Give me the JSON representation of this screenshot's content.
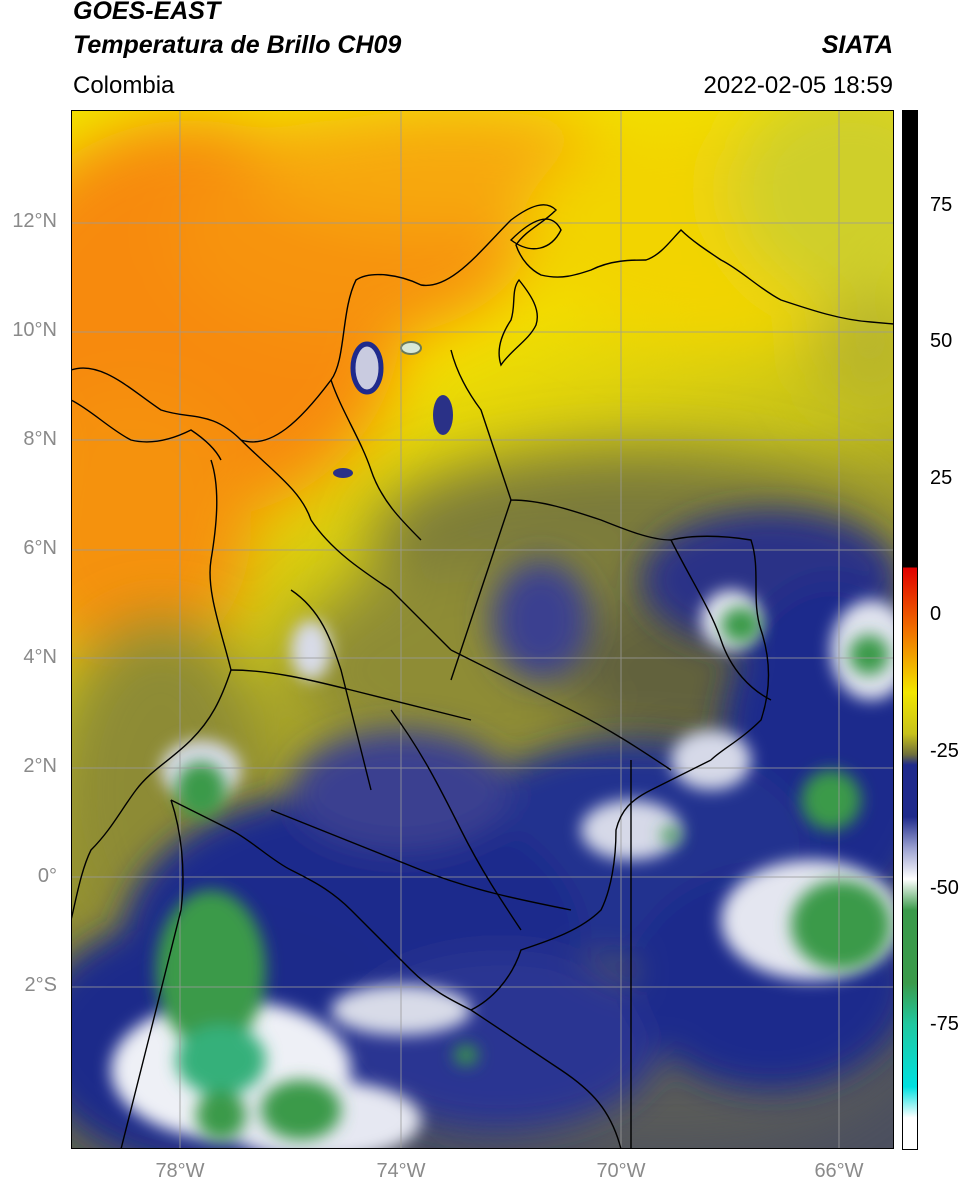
{
  "header": {
    "title_line1": "GOES-EAST",
    "title_line2": "Temperatura de Brillo CH09",
    "subtitle_left": "Colombia",
    "organization": "SIATA",
    "datetime": "2022-02-05 18:59"
  },
  "map": {
    "lat_labels": [
      "12°N",
      "10°N",
      "8°N",
      "6°N",
      "4°N",
      "2°N",
      "0°",
      "2°S"
    ],
    "lon_labels": [
      "78°W",
      "74°W",
      "70°W",
      "66°W"
    ],
    "colors": {
      "warm_orange": "#f78a08",
      "yellow": "#f2e600",
      "olive": "#b7b51f",
      "dark_olive": "#6f6f3c",
      "navy": "#1f2a8c",
      "white": "#f2f2f8",
      "green": "#3a9a4a",
      "gridline": "#9a9a9a",
      "border": "#000000"
    }
  },
  "colorbar": {
    "tick_labels": [
      "75",
      "50",
      "25",
      "0",
      "-25",
      "-50",
      "-75"
    ]
  }
}
